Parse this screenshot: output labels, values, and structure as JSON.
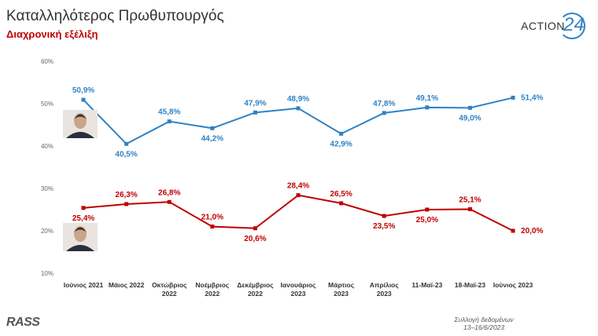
{
  "header": {
    "title": "Καταλληλότερος Πρωθυπουργός",
    "subtitle": "Διαχρονική εξέλιξη"
  },
  "brand": {
    "text": "ACTION",
    "number": "24",
    "color": "#2f82c4"
  },
  "footer": {
    "logo": "RASS",
    "note_line1": "Συλλογή δεδομένων",
    "note_line2": "13–16/6/2023"
  },
  "chart_data": {
    "type": "line",
    "categories": [
      [
        "Ιούνιος 2021"
      ],
      [
        "Μάιος 2022"
      ],
      [
        "Οκτώβριος",
        "2022"
      ],
      [
        "Νοέμβριος",
        "2022"
      ],
      [
        "Δεκέμβριος",
        "2022"
      ],
      [
        "Ιανουάριος",
        "2023"
      ],
      [
        "Μάρτιος",
        "2023"
      ],
      [
        "Απρίλιος",
        "2023"
      ],
      [
        "11-Μαϊ-23"
      ],
      [
        "18-Μαϊ-23"
      ],
      [
        "Ιούνιος 2023"
      ]
    ],
    "yticks": [
      "60%",
      "50%",
      "40%",
      "30%",
      "20%",
      "10%"
    ],
    "ylim": [
      10,
      60
    ],
    "series": [
      {
        "color": "#2f82c4",
        "values": [
          50.9,
          40.5,
          45.8,
          44.2,
          47.9,
          48.9,
          42.9,
          47.8,
          49.1,
          49.0,
          51.4
        ],
        "labels": [
          "50,9%",
          "40,5%",
          "45,8%",
          "44,2%",
          "47,9%",
          "48,9%",
          "42,9%",
          "47,8%",
          "49,1%",
          "49,0%",
          "51,4%"
        ],
        "label_pos": [
          "above",
          "below",
          "above",
          "below",
          "above",
          "above",
          "below",
          "above",
          "above",
          "below",
          "right"
        ]
      },
      {
        "color": "#c00000",
        "values": [
          25.4,
          26.3,
          26.8,
          21.0,
          20.6,
          28.4,
          26.5,
          23.5,
          25.0,
          25.1,
          20.0
        ],
        "labels": [
          "25,4%",
          "26,3%",
          "26,8%",
          "21,0%",
          "20,6%",
          "28,4%",
          "26,5%",
          "23,5%",
          "25,0%",
          "25,1%",
          "20,0%"
        ],
        "label_pos": [
          "below",
          "above",
          "above",
          "above",
          "below",
          "above",
          "above",
          "below",
          "below",
          "above",
          "right"
        ]
      }
    ],
    "grid": false,
    "legend": "portrait photos beside each line"
  }
}
